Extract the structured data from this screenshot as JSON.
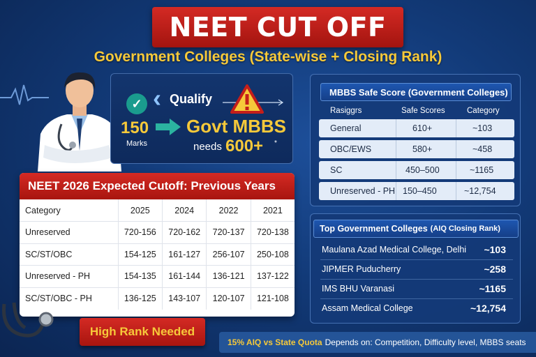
{
  "banner": {
    "title": "NEET CUT OFF"
  },
  "subtitle": "Government Colleges (State-wise + Closing Rank)",
  "qualify": {
    "label": "Qualify",
    "marks": "150",
    "marks_label": "Marks",
    "target_title": "Govt MBBS",
    "needs_label": "needs",
    "needs_value": "600+",
    "needs_mark": "*"
  },
  "cutoff_table": {
    "title": "NEET 2026 Expected Cutoff: Previous Years",
    "headers": [
      "Category",
      "2025",
      "2024",
      "2022",
      "2021"
    ],
    "rows": [
      [
        "Unreserved",
        "720-156",
        "720-162",
        "720-137",
        "720-138"
      ],
      [
        "SC/ST/OBC",
        "154-125",
        "161-127",
        "256-107",
        "250-108"
      ],
      [
        "Unreserved - PH",
        "154-135",
        "161-144",
        "136-121",
        "137-122"
      ],
      [
        "SC/ST/OBC - PH",
        "136-125",
        "143-107",
        "120-107",
        "121-108"
      ]
    ]
  },
  "safe_score": {
    "title": "MBBS Safe Score (Government Colleges)",
    "headers": [
      "Rasiggrs",
      "Safe Scores",
      "Category"
    ],
    "rows": [
      [
        "General",
        "610+",
        "~103"
      ],
      [
        "OBC/EWS",
        "580+",
        "~458"
      ],
      [
        "SC",
        "450–500",
        "~1165"
      ],
      [
        "Unreserved - PH",
        "150–450",
        "~12,754"
      ]
    ]
  },
  "colleges": {
    "title": "Top Government Colleges",
    "title_suffix": "(AIQ Closing Rank)",
    "rows": [
      {
        "name": "Maulana Azad Medical College, Delhi",
        "rank": "~103"
      },
      {
        "name": "JIPMER Puducherry",
        "rank": "~258"
      },
      {
        "name": "IMS BHU Varanasi",
        "rank": "~1165"
      },
      {
        "name": "Assam Medical College",
        "rank": "~12,754"
      }
    ]
  },
  "high_rank": "High Rank Needed",
  "bottom_bar": {
    "highlight": "15% AIQ vs State Quota",
    "text": "Depends on: Competition, Difficulty level, MBBS seats"
  },
  "colors": {
    "accent_red": "#c41e1a",
    "accent_yellow": "#f6c93a",
    "bg_blue": "#123a78"
  }
}
